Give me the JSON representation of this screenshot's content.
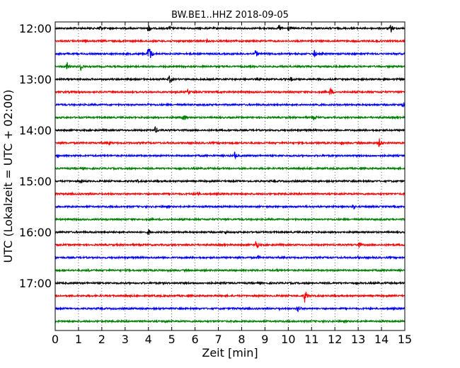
{
  "chart_data": {
    "type": "line",
    "title": "BW.BE1..HHZ 2018-09-05",
    "xlabel": "Zeit  [min]",
    "ylabel": "UTC (Lokalzeit = UTC + 02:00)",
    "xlim": [
      0,
      15
    ],
    "x_ticks": [
      "0",
      "1",
      "2",
      "3",
      "4",
      "5",
      "6",
      "7",
      "8",
      "9",
      "10",
      "11",
      "12",
      "13",
      "14",
      "15"
    ],
    "y_ticks": [
      "12:00",
      "13:00",
      "14:00",
      "15:00",
      "16:00",
      "17:00"
    ],
    "grid": "vertical dotted",
    "colors": [
      "#000000",
      "#ff0000",
      "#0000ff",
      "#008000"
    ],
    "series": [
      {
        "start": "12:00",
        "color": "#000000",
        "events": [
          {
            "t": 1.9,
            "a": 6
          },
          {
            "t": 4.0,
            "a": 7
          },
          {
            "t": 4.9,
            "a": 4
          },
          {
            "t": 9.6,
            "a": 6
          },
          {
            "t": 10.0,
            "a": 5
          },
          {
            "t": 14.4,
            "a": 7
          }
        ]
      },
      {
        "start": "12:15",
        "color": "#ff0000",
        "events": [
          {
            "t": 1.3,
            "a": 3
          },
          {
            "t": 6.5,
            "a": 3
          },
          {
            "t": 13.8,
            "a": 3
          }
        ]
      },
      {
        "start": "12:30",
        "color": "#0000ff",
        "events": [
          {
            "t": 4.0,
            "a": 15
          },
          {
            "t": 8.6,
            "a": 6
          },
          {
            "t": 11.1,
            "a": 6
          }
        ]
      },
      {
        "start": "12:45",
        "color": "#008000",
        "events": [
          {
            "t": 0.5,
            "a": 8
          },
          {
            "t": 1.1,
            "a": 6
          }
        ]
      },
      {
        "start": "13:00",
        "color": "#000000",
        "events": [
          {
            "t": 4.9,
            "a": 7
          },
          {
            "t": 10.1,
            "a": 4
          }
        ]
      },
      {
        "start": "13:15",
        "color": "#ff0000",
        "events": [
          {
            "t": 5.7,
            "a": 5
          },
          {
            "t": 11.8,
            "a": 7
          }
        ]
      },
      {
        "start": "13:30",
        "color": "#0000ff",
        "events": [
          {
            "t": 4.0,
            "a": 3
          },
          {
            "t": 11.2,
            "a": 4
          },
          {
            "t": 14.9,
            "a": 4
          }
        ]
      },
      {
        "start": "13:45",
        "color": "#008000",
        "events": [
          {
            "t": 5.5,
            "a": 7
          },
          {
            "t": 11.1,
            "a": 5
          }
        ]
      },
      {
        "start": "14:00",
        "color": "#000000",
        "events": [
          {
            "t": 4.3,
            "a": 6
          }
        ]
      },
      {
        "start": "14:15",
        "color": "#ff0000",
        "events": [
          {
            "t": 2.3,
            "a": 4
          },
          {
            "t": 12.3,
            "a": 3
          },
          {
            "t": 13.9,
            "a": 7
          }
        ]
      },
      {
        "start": "14:30",
        "color": "#0000ff",
        "events": [
          {
            "t": 0.1,
            "a": 3
          },
          {
            "t": 7.7,
            "a": 6
          }
        ]
      },
      {
        "start": "14:45",
        "color": "#008000",
        "events": []
      },
      {
        "start": "15:00",
        "color": "#000000",
        "events": [
          {
            "t": 1.1,
            "a": 4
          },
          {
            "t": 3.5,
            "a": 3
          }
        ]
      },
      {
        "start": "15:15",
        "color": "#ff0000",
        "events": [
          {
            "t": 6.1,
            "a": 4
          }
        ]
      },
      {
        "start": "15:30",
        "color": "#0000ff",
        "events": [
          {
            "t": 12.8,
            "a": 4
          }
        ]
      },
      {
        "start": "15:45",
        "color": "#008000",
        "events": []
      },
      {
        "start": "16:00",
        "color": "#000000",
        "events": [
          {
            "t": 4.0,
            "a": 5
          },
          {
            "t": 7.3,
            "a": 3
          }
        ]
      },
      {
        "start": "16:15",
        "color": "#ff0000",
        "events": [
          {
            "t": 8.6,
            "a": 8
          },
          {
            "t": 13.0,
            "a": 6
          }
        ]
      },
      {
        "start": "16:30",
        "color": "#0000ff",
        "events": [
          {
            "t": 8.7,
            "a": 3
          },
          {
            "t": 13.0,
            "a": 3
          }
        ]
      },
      {
        "start": "16:45",
        "color": "#008000",
        "events": [
          {
            "t": 1.4,
            "a": 3
          },
          {
            "t": 9.5,
            "a": 3
          },
          {
            "t": 14.2,
            "a": 3
          }
        ]
      },
      {
        "start": "17:00",
        "color": "#000000",
        "events": []
      },
      {
        "start": "17:15",
        "color": "#ff0000",
        "events": [
          {
            "t": 10.7,
            "a": 10
          }
        ]
      },
      {
        "start": "17:30",
        "color": "#0000ff",
        "events": [
          {
            "t": 9.6,
            "a": 3
          },
          {
            "t": 10.4,
            "a": 7
          }
        ]
      },
      {
        "start": "17:45",
        "color": "#008000",
        "events": [
          {
            "t": 4.7,
            "a": 3
          }
        ]
      }
    ]
  }
}
